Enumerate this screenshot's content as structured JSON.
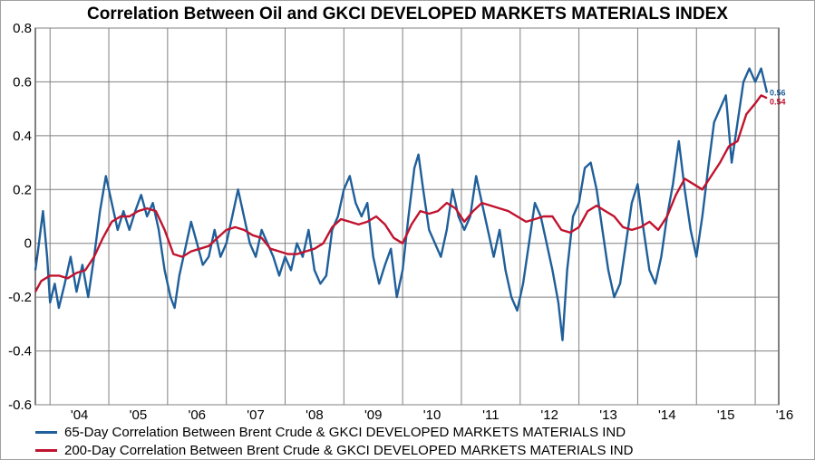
{
  "chart_data": {
    "type": "line",
    "title": "Correlation Between Oil and GKCI DEVELOPED MARKETS MATERIALS INDEX",
    "xlabel": "",
    "ylabel": "",
    "ylim": [
      -0.6,
      0.8
    ],
    "yticks": [
      "0.8",
      "0.6",
      "0.4",
      "0.2",
      "0",
      "-0.2",
      "-0.4",
      "-0.6"
    ],
    "xticks": [
      "'04",
      "'05",
      "'06",
      "'07",
      "'08",
      "'09",
      "'10",
      "'11",
      "'12",
      "'13",
      "'14",
      "'15",
      "'16"
    ],
    "x_range": [
      2003.75,
      2016.4
    ],
    "grid": true,
    "legend_placement": "bottom",
    "colors": {
      "series1": "#1f5f9a",
      "series2": "#c0132e",
      "grid": "#808080"
    },
    "series": [
      {
        "name": "65-Day Correlation Between Brent Crude & GKCI DEVELOPED MARKETS MATERIALS IND",
        "end_label": "0.56",
        "points": [
          [
            2003.75,
            -0.1
          ],
          [
            2003.8,
            -0.02
          ],
          [
            2003.88,
            0.12
          ],
          [
            2003.95,
            -0.05
          ],
          [
            2004.0,
            -0.22
          ],
          [
            2004.08,
            -0.15
          ],
          [
            2004.15,
            -0.24
          ],
          [
            2004.25,
            -0.15
          ],
          [
            2004.35,
            -0.05
          ],
          [
            2004.45,
            -0.18
          ],
          [
            2004.55,
            -0.08
          ],
          [
            2004.65,
            -0.2
          ],
          [
            2004.75,
            -0.05
          ],
          [
            2004.85,
            0.12
          ],
          [
            2004.95,
            0.25
          ],
          [
            2005.05,
            0.15
          ],
          [
            2005.15,
            0.05
          ],
          [
            2005.25,
            0.12
          ],
          [
            2005.35,
            0.05
          ],
          [
            2005.45,
            0.12
          ],
          [
            2005.55,
            0.18
          ],
          [
            2005.65,
            0.1
          ],
          [
            2005.75,
            0.15
          ],
          [
            2005.85,
            0.05
          ],
          [
            2005.95,
            -0.1
          ],
          [
            2006.05,
            -0.2
          ],
          [
            2006.12,
            -0.24
          ],
          [
            2006.2,
            -0.12
          ],
          [
            2006.3,
            -0.02
          ],
          [
            2006.4,
            0.08
          ],
          [
            2006.5,
            0.0
          ],
          [
            2006.6,
            -0.08
          ],
          [
            2006.7,
            -0.05
          ],
          [
            2006.8,
            0.05
          ],
          [
            2006.9,
            -0.05
          ],
          [
            2007.0,
            0.0
          ],
          [
            2007.1,
            0.1
          ],
          [
            2007.2,
            0.2
          ],
          [
            2007.3,
            0.1
          ],
          [
            2007.4,
            0.0
          ],
          [
            2007.5,
            -0.05
          ],
          [
            2007.6,
            0.05
          ],
          [
            2007.7,
            0.0
          ],
          [
            2007.8,
            -0.05
          ],
          [
            2007.9,
            -0.12
          ],
          [
            2008.0,
            -0.05
          ],
          [
            2008.1,
            -0.1
          ],
          [
            2008.2,
            0.0
          ],
          [
            2008.3,
            -0.05
          ],
          [
            2008.4,
            0.05
          ],
          [
            2008.5,
            -0.1
          ],
          [
            2008.6,
            -0.15
          ],
          [
            2008.7,
            -0.12
          ],
          [
            2008.8,
            0.05
          ],
          [
            2008.9,
            0.1
          ],
          [
            2009.0,
            0.2
          ],
          [
            2009.1,
            0.25
          ],
          [
            2009.2,
            0.15
          ],
          [
            2009.3,
            0.1
          ],
          [
            2009.4,
            0.15
          ],
          [
            2009.5,
            -0.05
          ],
          [
            2009.6,
            -0.15
          ],
          [
            2009.7,
            -0.08
          ],
          [
            2009.8,
            -0.02
          ],
          [
            2009.9,
            -0.2
          ],
          [
            2010.0,
            -0.1
          ],
          [
            2010.1,
            0.1
          ],
          [
            2010.2,
            0.28
          ],
          [
            2010.27,
            0.33
          ],
          [
            2010.35,
            0.2
          ],
          [
            2010.45,
            0.05
          ],
          [
            2010.55,
            0.0
          ],
          [
            2010.65,
            -0.05
          ],
          [
            2010.75,
            0.05
          ],
          [
            2010.85,
            0.2
          ],
          [
            2010.95,
            0.1
          ],
          [
            2011.05,
            0.05
          ],
          [
            2011.15,
            0.1
          ],
          [
            2011.25,
            0.25
          ],
          [
            2011.35,
            0.15
          ],
          [
            2011.45,
            0.05
          ],
          [
            2011.55,
            -0.05
          ],
          [
            2011.65,
            0.05
          ],
          [
            2011.75,
            -0.1
          ],
          [
            2011.85,
            -0.2
          ],
          [
            2011.95,
            -0.25
          ],
          [
            2012.05,
            -0.15
          ],
          [
            2012.15,
            0.0
          ],
          [
            2012.25,
            0.15
          ],
          [
            2012.35,
            0.1
          ],
          [
            2012.45,
            0.0
          ],
          [
            2012.55,
            -0.1
          ],
          [
            2012.65,
            -0.22
          ],
          [
            2012.72,
            -0.36
          ],
          [
            2012.8,
            -0.1
          ],
          [
            2012.9,
            0.1
          ],
          [
            2013.0,
            0.15
          ],
          [
            2013.1,
            0.28
          ],
          [
            2013.2,
            0.3
          ],
          [
            2013.3,
            0.2
          ],
          [
            2013.4,
            0.05
          ],
          [
            2013.5,
            -0.1
          ],
          [
            2013.6,
            -0.2
          ],
          [
            2013.7,
            -0.15
          ],
          [
            2013.8,
            0.0
          ],
          [
            2013.9,
            0.15
          ],
          [
            2014.0,
            0.22
          ],
          [
            2014.1,
            0.05
          ],
          [
            2014.2,
            -0.1
          ],
          [
            2014.3,
            -0.15
          ],
          [
            2014.4,
            -0.05
          ],
          [
            2014.5,
            0.1
          ],
          [
            2014.6,
            0.22
          ],
          [
            2014.7,
            0.38
          ],
          [
            2014.8,
            0.2
          ],
          [
            2014.9,
            0.05
          ],
          [
            2015.0,
            -0.05
          ],
          [
            2015.1,
            0.1
          ],
          [
            2015.2,
            0.28
          ],
          [
            2015.3,
            0.45
          ],
          [
            2015.4,
            0.5
          ],
          [
            2015.5,
            0.55
          ],
          [
            2015.6,
            0.3
          ],
          [
            2015.7,
            0.45
          ],
          [
            2015.8,
            0.6
          ],
          [
            2015.9,
            0.65
          ],
          [
            2016.0,
            0.6
          ],
          [
            2016.1,
            0.65
          ],
          [
            2016.2,
            0.56
          ]
        ]
      },
      {
        "name": "200-Day Correlation Between Brent Crude & GKCI DEVELOPED MARKETS MATERIALS IND",
        "end_label": "0.54",
        "points": [
          [
            2003.75,
            -0.18
          ],
          [
            2003.85,
            -0.14
          ],
          [
            2004.0,
            -0.12
          ],
          [
            2004.15,
            -0.12
          ],
          [
            2004.3,
            -0.13
          ],
          [
            2004.45,
            -0.11
          ],
          [
            2004.6,
            -0.1
          ],
          [
            2004.75,
            -0.05
          ],
          [
            2004.9,
            0.02
          ],
          [
            2005.05,
            0.08
          ],
          [
            2005.2,
            0.1
          ],
          [
            2005.35,
            0.1
          ],
          [
            2005.5,
            0.12
          ],
          [
            2005.65,
            0.13
          ],
          [
            2005.8,
            0.12
          ],
          [
            2005.95,
            0.05
          ],
          [
            2006.1,
            -0.04
          ],
          [
            2006.25,
            -0.05
          ],
          [
            2006.4,
            -0.03
          ],
          [
            2006.55,
            -0.02
          ],
          [
            2006.7,
            -0.01
          ],
          [
            2006.85,
            0.02
          ],
          [
            2007.0,
            0.05
          ],
          [
            2007.15,
            0.06
          ],
          [
            2007.3,
            0.05
          ],
          [
            2007.45,
            0.03
          ],
          [
            2007.6,
            0.02
          ],
          [
            2007.75,
            -0.02
          ],
          [
            2007.9,
            -0.03
          ],
          [
            2008.05,
            -0.04
          ],
          [
            2008.2,
            -0.04
          ],
          [
            2008.35,
            -0.03
          ],
          [
            2008.5,
            -0.02
          ],
          [
            2008.65,
            0.0
          ],
          [
            2008.8,
            0.06
          ],
          [
            2008.95,
            0.09
          ],
          [
            2009.1,
            0.08
          ],
          [
            2009.25,
            0.07
          ],
          [
            2009.4,
            0.08
          ],
          [
            2009.55,
            0.1
          ],
          [
            2009.7,
            0.07
          ],
          [
            2009.85,
            0.02
          ],
          [
            2010.0,
            0.0
          ],
          [
            2010.15,
            0.07
          ],
          [
            2010.3,
            0.12
          ],
          [
            2010.45,
            0.11
          ],
          [
            2010.6,
            0.12
          ],
          [
            2010.75,
            0.15
          ],
          [
            2010.9,
            0.13
          ],
          [
            2011.05,
            0.08
          ],
          [
            2011.2,
            0.12
          ],
          [
            2011.35,
            0.15
          ],
          [
            2011.5,
            0.14
          ],
          [
            2011.65,
            0.13
          ],
          [
            2011.8,
            0.12
          ],
          [
            2011.95,
            0.1
          ],
          [
            2012.1,
            0.08
          ],
          [
            2012.25,
            0.09
          ],
          [
            2012.4,
            0.1
          ],
          [
            2012.55,
            0.1
          ],
          [
            2012.7,
            0.05
          ],
          [
            2012.85,
            0.04
          ],
          [
            2013.0,
            0.06
          ],
          [
            2013.15,
            0.12
          ],
          [
            2013.3,
            0.14
          ],
          [
            2013.45,
            0.12
          ],
          [
            2013.6,
            0.1
          ],
          [
            2013.75,
            0.06
          ],
          [
            2013.9,
            0.05
          ],
          [
            2014.05,
            0.06
          ],
          [
            2014.2,
            0.08
          ],
          [
            2014.35,
            0.05
          ],
          [
            2014.5,
            0.1
          ],
          [
            2014.65,
            0.18
          ],
          [
            2014.8,
            0.24
          ],
          [
            2014.95,
            0.22
          ],
          [
            2015.1,
            0.2
          ],
          [
            2015.25,
            0.25
          ],
          [
            2015.4,
            0.3
          ],
          [
            2015.55,
            0.36
          ],
          [
            2015.7,
            0.38
          ],
          [
            2015.85,
            0.48
          ],
          [
            2016.0,
            0.52
          ],
          [
            2016.1,
            0.55
          ],
          [
            2016.2,
            0.54
          ]
        ]
      }
    ]
  }
}
